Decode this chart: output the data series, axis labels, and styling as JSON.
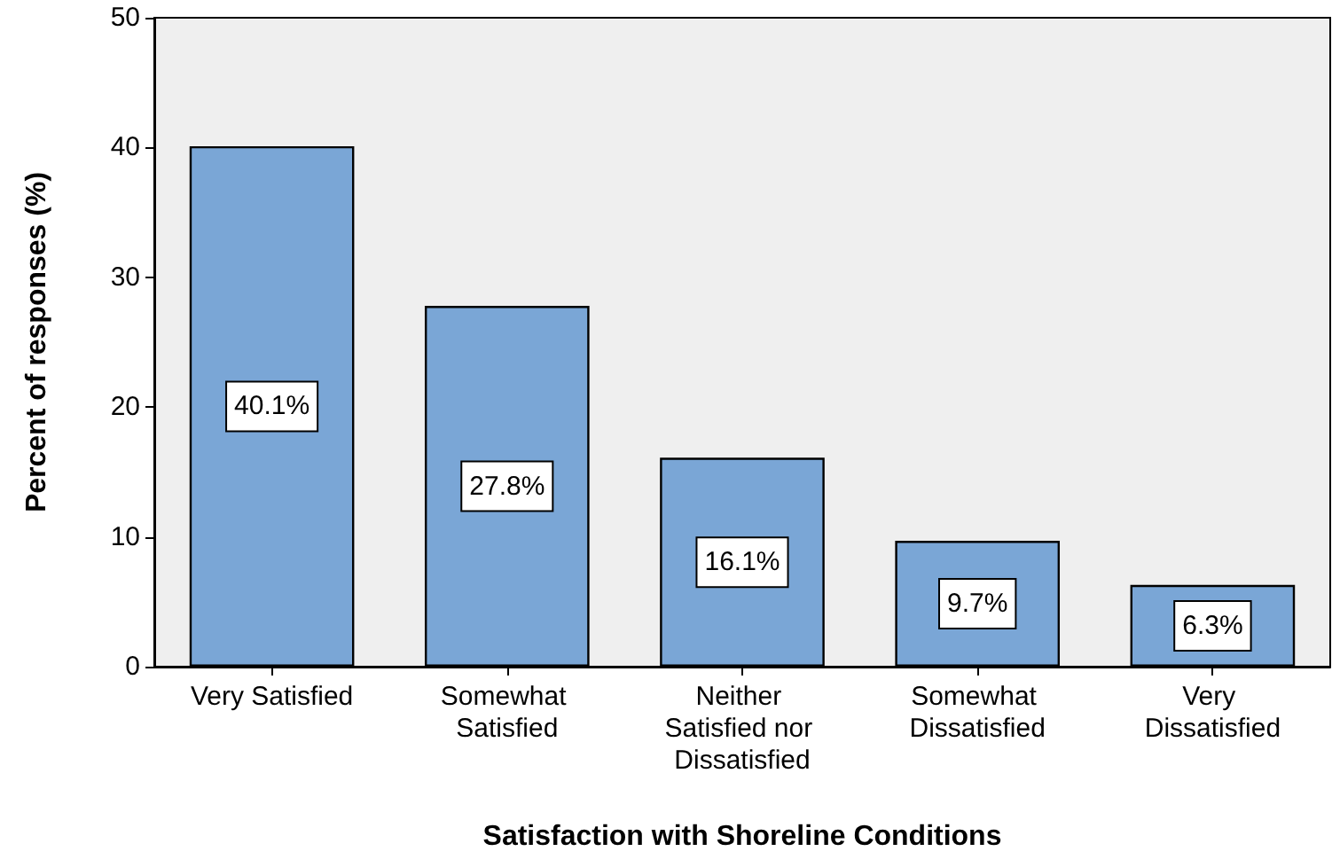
{
  "chart_data": {
    "type": "bar",
    "xlabel": "Satisfaction with Shoreline Conditions",
    "ylabel": "Percent of responses (%)",
    "categories": [
      "Very Satisfied",
      "Somewhat Satisfied",
      "Neither Satisfied nor Dissatisfied",
      "Somewhat Dissatisfied",
      "Very Dissatisfied"
    ],
    "values": [
      40.1,
      27.8,
      16.1,
      9.7,
      6.3
    ],
    "value_labels": [
      "40.1%",
      "27.8%",
      "16.1%",
      "9.7%",
      "6.3%"
    ],
    "color": "#7aa6d6",
    "ylim": [
      0,
      50
    ],
    "yticks": [
      0,
      10,
      20,
      30,
      40,
      50
    ],
    "grid": false
  }
}
